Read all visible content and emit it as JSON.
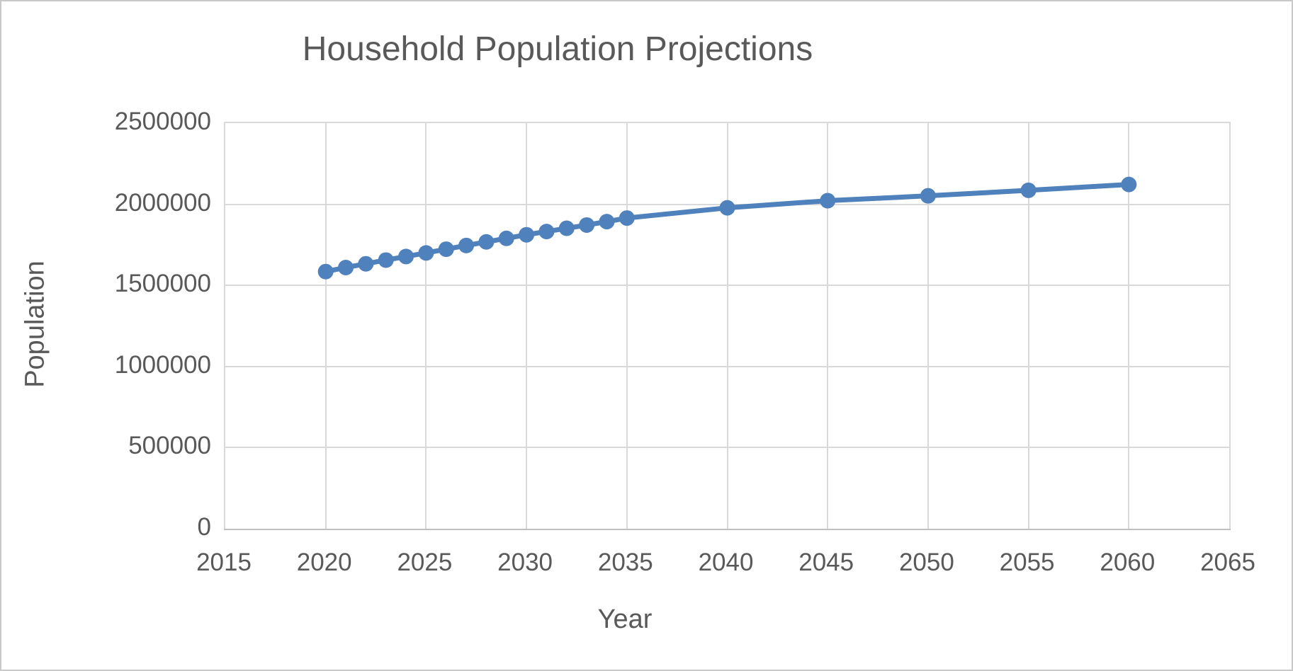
{
  "chart_data": {
    "type": "line",
    "title": "Household Population Projections",
    "xlabel": "Year",
    "ylabel": "Population",
    "xlim": [
      2015,
      2065
    ],
    "ylim": [
      0,
      2500000
    ],
    "xticks": [
      2015,
      2020,
      2025,
      2030,
      2035,
      2040,
      2045,
      2050,
      2055,
      2060,
      2065
    ],
    "yticks": [
      0,
      500000,
      1000000,
      1500000,
      2000000,
      2500000
    ],
    "grid": true,
    "legend": "none",
    "series": [
      {
        "color": "#4F81BD",
        "marker": "circle",
        "x": [
          2020,
          2021,
          2022,
          2023,
          2024,
          2025,
          2026,
          2027,
          2028,
          2029,
          2030,
          2031,
          2032,
          2033,
          2034,
          2035,
          2040,
          2045,
          2050,
          2055,
          2060
        ],
        "y": [
          1585000,
          1610000,
          1633000,
          1656000,
          1678000,
          1700000,
          1723000,
          1746000,
          1768000,
          1790000,
          1812000,
          1832000,
          1852000,
          1872000,
          1893000,
          1915000,
          1978000,
          2022000,
          2052000,
          2086000,
          2122000
        ]
      }
    ],
    "colors": {
      "series": "#4F81BD",
      "gridline": "#D9D9D9",
      "axis_line": "#BFBFBF",
      "text": "#595959",
      "plot_background": "#FFFFFF"
    }
  }
}
